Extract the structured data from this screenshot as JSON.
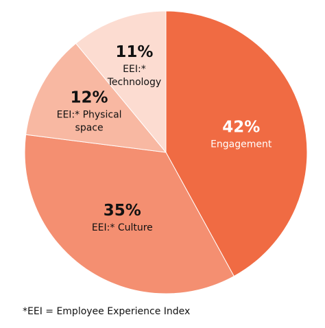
{
  "chart_data": {
    "type": "pie",
    "slices": [
      {
        "label": "Engagement",
        "value": 42,
        "value_label": "42%",
        "label_lines": [
          "Engagement"
        ],
        "color": "#F06B43",
        "text_color": "#ffffff"
      },
      {
        "label": "EEI:* Culture",
        "value": 35,
        "value_label": "35%",
        "label_lines": [
          "EEI:* Culture"
        ],
        "color": "#F48F71",
        "text_color": "#111111"
      },
      {
        "label": "EEI:* Physical space",
        "value": 12,
        "value_label": "12%",
        "label_lines": [
          "EEI:* Physical",
          "space"
        ],
        "color": "#F8B8A2",
        "text_color": "#111111"
      },
      {
        "label": "EEI:* Technology",
        "value": 11,
        "value_label": "11%",
        "label_lines": [
          "EEI:*",
          "Technology"
        ],
        "color": "#FCDCD1",
        "text_color": "#111111"
      }
    ],
    "start_angle_deg": 0,
    "direction": "clockwise"
  },
  "footnote": "*EEI = Employee Experience Index"
}
